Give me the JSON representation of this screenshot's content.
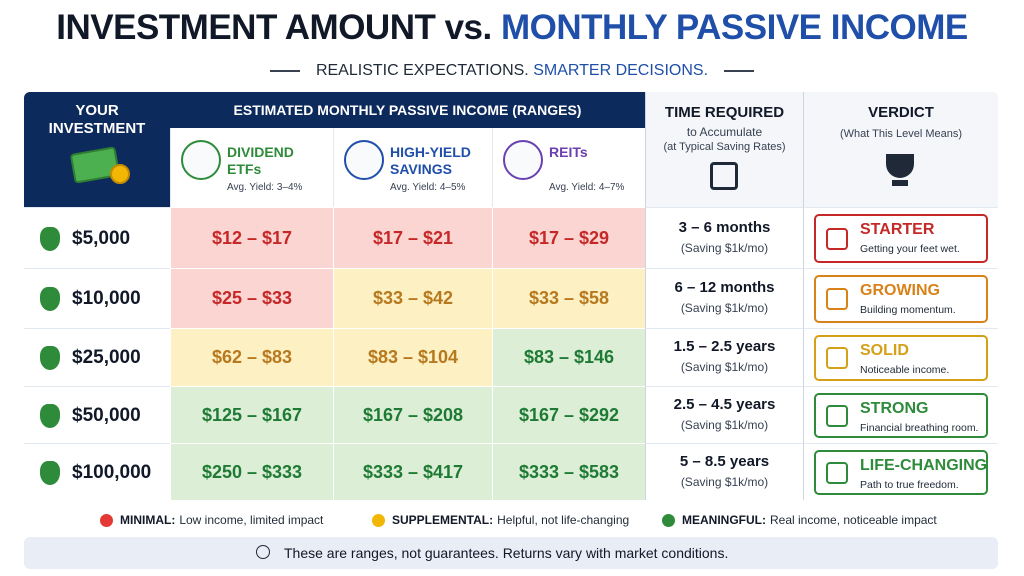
{
  "title": {
    "part1": "INVESTMENT AMOUNT vs.",
    "part2": "MONTHLY PASSIVE INCOME"
  },
  "subtitle": {
    "part1": "REALISTIC EXPECTATIONS.",
    "part2": "SMARTER DECISIONS."
  },
  "table": {
    "headers": {
      "investment": "YOUR INVESTMENT",
      "income": "ESTIMATED MONTHLY PASSIVE INCOME (RANGES)",
      "options": [
        {
          "name": "DIVIDEND ETFs",
          "yield": "Avg. Yield: 3–4%",
          "color": "#2e8b3a"
        },
        {
          "name": "HIGH-YIELD SAVINGS",
          "yield": "Avg. Yield: 4–5%",
          "color": "#1f4fa8"
        },
        {
          "name": "REITs",
          "yield": "Avg. Yield: 4–7%",
          "color": "#6a3fb0"
        }
      ],
      "time": {
        "title": "TIME REQUIRED",
        "sub": "to Accumulate",
        "note": "(at Typical Saving Rates)"
      },
      "verdict": {
        "title": "VERDICT",
        "sub": "(What This Level Means)"
      }
    },
    "rows": [
      {
        "amount": "$5,000",
        "cells": [
          {
            "range": "$12 – $17",
            "bg": "#fbd5d2",
            "fg": "#c62828"
          },
          {
            "range": "$17 – $21",
            "bg": "#fbd5d2",
            "fg": "#c62828"
          },
          {
            "range": "$17 – $29",
            "bg": "#fbd5d2",
            "fg": "#c62828"
          }
        ],
        "time": {
          "duration": "3 – 6 months",
          "rate": "(Saving $1k/mo)"
        },
        "verdict": {
          "label": "STARTER",
          "desc": "Getting your feet wet.",
          "color": "#c62828"
        }
      },
      {
        "amount": "$10,000",
        "cells": [
          {
            "range": "$25 – $33",
            "bg": "#fbd5d2",
            "fg": "#c62828"
          },
          {
            "range": "$33 – $42",
            "bg": "#fdf0c2",
            "fg": "#b7791f"
          },
          {
            "range": "$33 – $58",
            "bg": "#fdf0c2",
            "fg": "#b7791f"
          }
        ],
        "time": {
          "duration": "6 – 12 months",
          "rate": "(Saving $1k/mo)"
        },
        "verdict": {
          "label": "GROWING",
          "desc": "Building momentum.",
          "color": "#d9821a"
        }
      },
      {
        "amount": "$25,000",
        "cells": [
          {
            "range": "$62 – $83",
            "bg": "#fdf0c2",
            "fg": "#b7791f"
          },
          {
            "range": "$83 – $104",
            "bg": "#fdf0c2",
            "fg": "#b7791f"
          },
          {
            "range": "$83 – $146",
            "bg": "#dcefd6",
            "fg": "#1e7a34"
          }
        ],
        "time": {
          "duration": "1.5 – 2.5 years",
          "rate": "(Saving $1k/mo)"
        },
        "verdict": {
          "label": "SOLID",
          "desc": "Noticeable income.",
          "color": "#d4a017"
        }
      },
      {
        "amount": "$50,000",
        "cells": [
          {
            "range": "$125 – $167",
            "bg": "#dcefd6",
            "fg": "#1e7a34"
          },
          {
            "range": "$167 – $208",
            "bg": "#dcefd6",
            "fg": "#1e7a34"
          },
          {
            "range": "$167 – $292",
            "bg": "#dcefd6",
            "fg": "#1e7a34"
          }
        ],
        "time": {
          "duration": "2.5 – 4.5 years",
          "rate": "(Saving $1k/mo)"
        },
        "verdict": {
          "label": "STRONG",
          "desc": "Financial breathing room.",
          "color": "#2e8b3a"
        }
      },
      {
        "amount": "$100,000",
        "cells": [
          {
            "range": "$250 – $333",
            "bg": "#dcefd6",
            "fg": "#1e7a34"
          },
          {
            "range": "$333 – $417",
            "bg": "#dcefd6",
            "fg": "#1e7a34"
          },
          {
            "range": "$333 – $583",
            "bg": "#dcefd6",
            "fg": "#1e7a34"
          }
        ],
        "time": {
          "duration": "5 – 8.5 years",
          "rate": "(Saving $1k/mo)"
        },
        "verdict": {
          "label": "LIFE-CHANGING",
          "desc": "Path to true freedom.",
          "color": "#2e8b3a"
        }
      }
    ]
  },
  "legend": [
    {
      "label": "MINIMAL:",
      "desc": "Low income, limited impact",
      "color": "#e53935"
    },
    {
      "label": "SUPPLEMENTAL:",
      "desc": "Helpful, not life-changing",
      "color": "#f2b705"
    },
    {
      "label": "MEANINGFUL:",
      "desc": "Real income, noticeable impact",
      "color": "#2e8b3a"
    }
  ],
  "note": "These are ranges, not guarantees. Returns vary with market conditions."
}
